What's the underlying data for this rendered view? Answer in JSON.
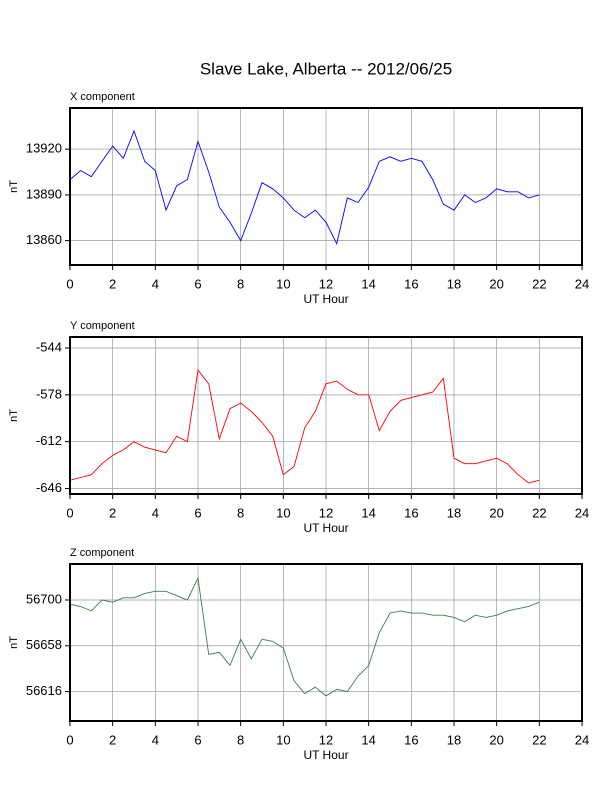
{
  "title": "Slave Lake, Alberta -- 2012/06/25",
  "chart_data": [
    {
      "type": "line",
      "title": "X component",
      "x_label": "UT Hour",
      "y_label": "nT",
      "color": "#0000ff",
      "grid": true,
      "x": [
        0,
        0.5,
        1,
        1.5,
        2,
        2.5,
        3,
        3.5,
        4,
        4.5,
        5,
        5.5,
        6,
        6.5,
        7,
        7.5,
        8,
        8.5,
        9,
        9.5,
        10,
        10.5,
        11,
        11.5,
        12,
        12.5,
        13,
        13.5,
        14,
        14.5,
        15,
        15.5,
        16,
        16.5,
        17,
        17.5,
        18,
        18.5,
        19,
        19.5,
        20,
        20.5,
        21,
        21.5,
        22
      ],
      "values": [
        13900,
        13906,
        13902,
        13912,
        13922,
        13914,
        13932,
        13912,
        13906,
        13880,
        13896,
        13900,
        13925,
        13905,
        13882,
        13872,
        13860,
        13878,
        13898,
        13894,
        13888,
        13880,
        13875,
        13880,
        13872,
        13858,
        13888,
        13885,
        13895,
        13912,
        13915,
        13912,
        13914,
        13912,
        13900,
        13884,
        13880,
        13890,
        13885,
        13888,
        13894,
        13892,
        13892,
        13888,
        13890
      ],
      "xlim": [
        0,
        24
      ],
      "xticks": [
        0,
        2,
        4,
        6,
        8,
        10,
        12,
        14,
        16,
        18,
        20,
        22,
        24
      ],
      "ylim": [
        13844,
        13947
      ],
      "yticks": [
        13860,
        13890,
        13920
      ]
    },
    {
      "type": "line",
      "title": "Y component",
      "x_label": "UT Hour",
      "y_label": "nT",
      "color": "#ff0000",
      "grid": true,
      "x": [
        0,
        0.5,
        1,
        1.5,
        2,
        2.5,
        3,
        3.5,
        4,
        4.5,
        5,
        5.5,
        6,
        6.5,
        7,
        7.5,
        8,
        8.5,
        9,
        9.5,
        10,
        10.5,
        11,
        11.5,
        12,
        12.5,
        13,
        13.5,
        14,
        14.5,
        15,
        15.5,
        16,
        16.5,
        17,
        17.5,
        18,
        18.5,
        19,
        19.5,
        20,
        20.5,
        21,
        21.5,
        22
      ],
      "values": [
        -640,
        -638,
        -636,
        -628,
        -622,
        -618,
        -612,
        -616,
        -618,
        -620,
        -608,
        -612,
        -560,
        -570,
        -610,
        -588,
        -584,
        -590,
        -598,
        -608,
        -636,
        -630,
        -602,
        -590,
        -570,
        -568,
        -574,
        -578,
        -578,
        -604,
        -590,
        -582,
        -580,
        -578,
        -576,
        -566,
        -624,
        -628,
        -628,
        -626,
        -624,
        -628,
        -636,
        -642,
        -640
      ],
      "xlim": [
        0,
        24
      ],
      "xticks": [
        0,
        2,
        4,
        6,
        8,
        10,
        12,
        14,
        16,
        18,
        20,
        22,
        24
      ],
      "ylim": [
        -650,
        -536
      ],
      "yticks": [
        -646,
        -612,
        -578,
        -544
      ]
    },
    {
      "type": "line",
      "title": "Z component",
      "x_label": "UT Hour",
      "y_label": "nT",
      "color": "#3a7d4a",
      "grid": true,
      "x": [
        0,
        0.5,
        1,
        1.5,
        2,
        2.5,
        3,
        3.5,
        4,
        4.5,
        5,
        5.5,
        6,
        6.5,
        7,
        7.5,
        8,
        8.5,
        9,
        9.5,
        10,
        10.5,
        11,
        11.5,
        12,
        12.5,
        13,
        13.5,
        14,
        14.5,
        15,
        15.5,
        16,
        16.5,
        17,
        17.5,
        18,
        18.5,
        19,
        19.5,
        20,
        20.5,
        21,
        21.5,
        22
      ],
      "values": [
        56696,
        56694,
        56690,
        56700,
        56698,
        56702,
        56702,
        56706,
        56708,
        56708,
        56704,
        56700,
        56720,
        56650,
        56652,
        56640,
        56664,
        56646,
        56664,
        56662,
        56656,
        56626,
        56614,
        56620,
        56612,
        56618,
        56616,
        56630,
        56640,
        56670,
        56688,
        56690,
        56688,
        56688,
        56686,
        56686,
        56684,
        56680,
        56686,
        56684,
        56686,
        56690,
        56692,
        56694,
        56698
      ],
      "xlim": [
        0,
        24
      ],
      "xticks": [
        0,
        2,
        4,
        6,
        8,
        10,
        12,
        14,
        16,
        18,
        20,
        22,
        24
      ],
      "ylim": [
        56589,
        56733
      ],
      "yticks": [
        56616,
        56658,
        56700
      ]
    }
  ]
}
